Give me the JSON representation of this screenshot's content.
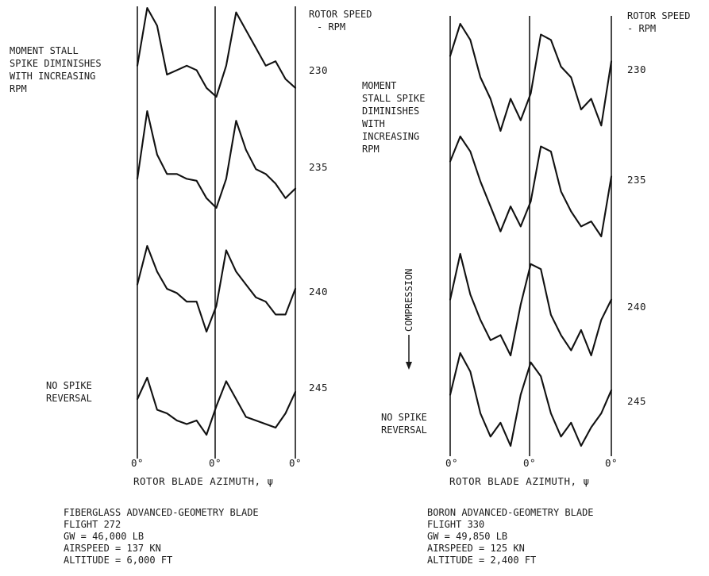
{
  "chart_data": [
    {
      "type": "line",
      "id": "fiberglass",
      "xlabel": "ROTOR BLADE AZIMUTH, ψ",
      "x_ticks": [
        "0°",
        "0°",
        "0°"
      ],
      "speed_header": [
        "ROTOR SPEED",
        "- RPM"
      ],
      "series": [
        {
          "name": "230",
          "values": [
            0.35,
            1.0,
            0.8,
            0.25,
            0.3,
            0.35,
            0.3,
            0.1,
            0.0,
            0.35,
            0.95,
            0.75,
            0.55,
            0.35,
            0.4,
            0.2,
            0.1
          ]
        },
        {
          "name": "235",
          "values": [
            0.3,
            1.0,
            0.55,
            0.35,
            0.35,
            0.3,
            0.28,
            0.1,
            0.0,
            0.3,
            0.9,
            0.6,
            0.4,
            0.35,
            0.25,
            0.1,
            0.2
          ]
        },
        {
          "name": "240",
          "values": [
            0.55,
            1.0,
            0.7,
            0.5,
            0.45,
            0.35,
            0.35,
            0.0,
            0.3,
            0.95,
            0.7,
            0.55,
            0.4,
            0.35,
            0.2,
            0.2,
            0.5
          ]
        },
        {
          "name": "245",
          "values": [
            0.5,
            0.8,
            0.35,
            0.3,
            0.2,
            0.15,
            0.2,
            0.0,
            0.4,
            0.75,
            0.5,
            0.25,
            0.2,
            0.15,
            0.1,
            0.3,
            0.6
          ]
        }
      ],
      "annotations": [
        {
          "lines": [
            "MOMENT STALL",
            "SPIKE DIMINISHES",
            "WITH INCREASING",
            "RPM"
          ]
        },
        {
          "lines": [
            "NO SPIKE",
            "REVERSAL"
          ]
        }
      ],
      "caption": [
        "FIBERGLASS ADVANCED-GEOMETRY BLADE",
        "FLIGHT 272",
        "GW = 46,000 LB",
        "AIRSPEED = 137 KN",
        "ALTITUDE = 6,000 FT"
      ]
    },
    {
      "type": "line",
      "id": "boron",
      "xlabel": "ROTOR BLADE AZIMUTH, ψ",
      "x_ticks": [
        "0°",
        "0°",
        "0°"
      ],
      "speed_header": [
        "ROTOR SPEED",
        "- RPM"
      ],
      "series": [
        {
          "name": "230",
          "values": [
            0.7,
            1.0,
            0.85,
            0.5,
            0.3,
            0.0,
            0.3,
            0.1,
            0.35,
            0.9,
            0.85,
            0.6,
            0.5,
            0.2,
            0.3,
            0.05,
            0.65
          ]
        },
        {
          "name": "235",
          "values": [
            0.75,
            1.0,
            0.85,
            0.55,
            0.3,
            0.05,
            0.3,
            0.1,
            0.35,
            0.9,
            0.85,
            0.45,
            0.25,
            0.1,
            0.15,
            0.0,
            0.6
          ]
        },
        {
          "name": "240",
          "values": [
            0.55,
            1.0,
            0.6,
            0.35,
            0.15,
            0.2,
            0.0,
            0.5,
            0.9,
            0.85,
            0.4,
            0.2,
            0.05,
            0.25,
            0.0,
            0.35,
            0.55
          ]
        },
        {
          "name": "245",
          "values": [
            0.55,
            1.0,
            0.8,
            0.35,
            0.1,
            0.25,
            0.0,
            0.55,
            0.9,
            0.75,
            0.35,
            0.1,
            0.25,
            0.0,
            0.2,
            0.35,
            0.6
          ]
        }
      ],
      "annotations": [
        {
          "lines": [
            "MOMENT",
            "STALL SPIKE",
            "DIMINISHES",
            "WITH",
            "INCREASING",
            "RPM"
          ]
        },
        {
          "lines": [
            "NO SPIKE",
            "REVERSAL"
          ]
        },
        {
          "lines": [
            "COMPRESSION"
          ]
        }
      ],
      "caption": [
        "BORON ADVANCED-GEOMETRY BLADE",
        "FLIGHT 330",
        "GW = 49,850 LB",
        "AIRSPEED = 125 KN",
        "ALTITUDE = 2,400 FT"
      ]
    }
  ]
}
